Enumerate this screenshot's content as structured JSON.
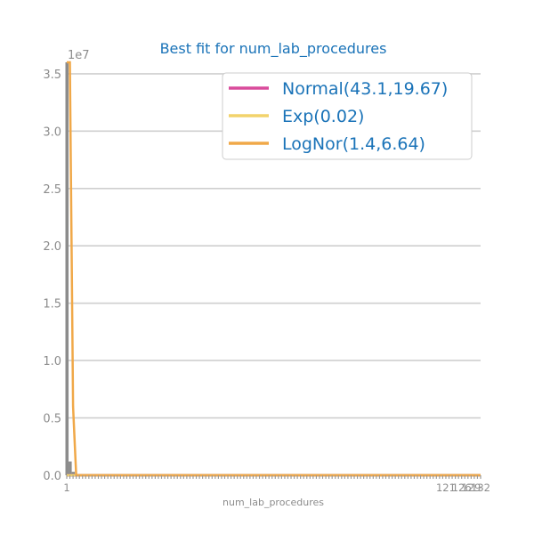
{
  "chart_data": {
    "type": "line",
    "title": "Best fit for num_lab_procedures",
    "xlabel": "num_lab_procedures",
    "ylabel": "",
    "y_scale_label": "1e7",
    "ylim": [
      0,
      36000000
    ],
    "xlim": [
      1,
      132
    ],
    "y_ticks": [
      0,
      5000000,
      10000000,
      15000000,
      20000000,
      25000000,
      30000000,
      35000000
    ],
    "y_tick_labels": [
      "0.0",
      "0.5",
      "1.0",
      "1.5",
      "2.0",
      "2.5",
      "3.0",
      "3.5"
    ],
    "x_tick_labels_visible": [
      "1",
      "121",
      "126",
      "129",
      "132"
    ],
    "grid": true,
    "legend_position": "top-right",
    "histogram": {
      "color": "#8c8c8c",
      "values_note": "",
      "bins": [
        {
          "x": 1,
          "y": 36000000
        },
        {
          "x": 2,
          "y": 1200000
        },
        {
          "x": 3,
          "y": 300000
        }
      ]
    },
    "series": [
      {
        "name": "Normal(43.1,19.67)",
        "color": "#d94b9b",
        "points": [
          [
            1,
            0
          ],
          [
            132,
            0
          ]
        ]
      },
      {
        "name": "Exp(0.02)",
        "color": "#f2d36b",
        "points": [
          [
            1,
            0
          ],
          [
            132,
            0
          ]
        ]
      },
      {
        "name": "LogNor(1.4,6.64)",
        "color": "#f0a848",
        "points": [
          [
            1,
            36000000
          ],
          [
            2,
            36000000
          ],
          [
            3,
            6000000
          ],
          [
            4,
            0
          ],
          [
            132,
            0
          ]
        ]
      }
    ]
  }
}
